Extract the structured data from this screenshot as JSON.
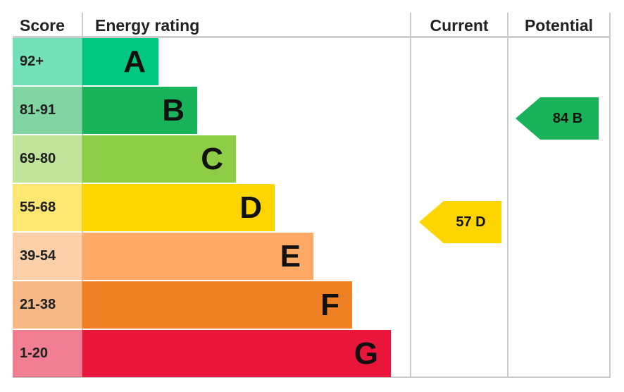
{
  "header": {
    "score": "Score",
    "energy_rating": "Energy rating",
    "current": "Current",
    "potential": "Potential"
  },
  "bands": [
    {
      "score": "92+",
      "letter": "A",
      "color": "#00c781"
    },
    {
      "score": "81-91",
      "letter": "B",
      "color": "#19b459"
    },
    {
      "score": "69-80",
      "letter": "C",
      "color": "#8dce46"
    },
    {
      "score": "55-68",
      "letter": "D",
      "color": "#ffd500"
    },
    {
      "score": "39-54",
      "letter": "E",
      "color": "#fcaa65"
    },
    {
      "score": "21-38",
      "letter": "F",
      "color": "#ef8023"
    },
    {
      "score": "1-20",
      "letter": "G",
      "color": "#e9153b"
    }
  ],
  "current": {
    "label": "57 D",
    "color": "#ffd500"
  },
  "potential": {
    "label": "84 B",
    "color": "#19b459"
  }
}
